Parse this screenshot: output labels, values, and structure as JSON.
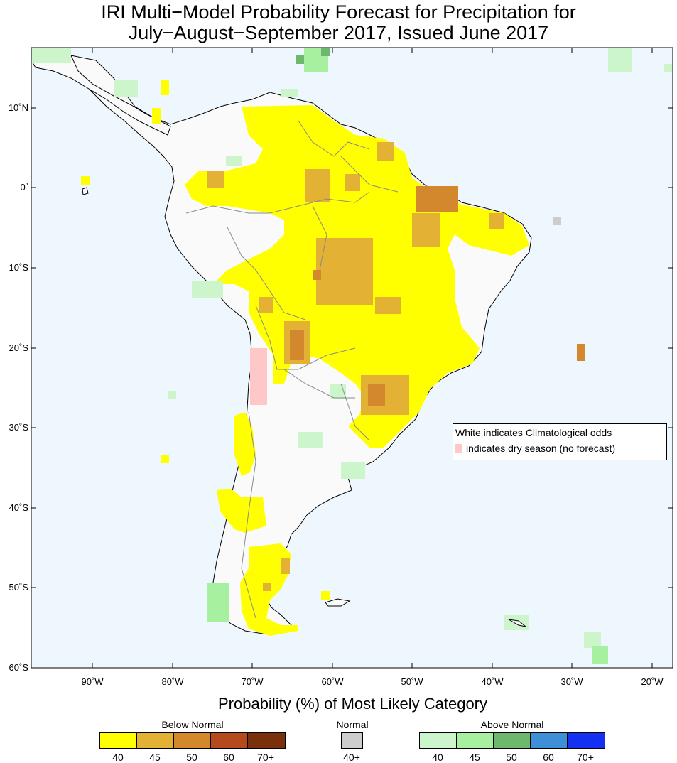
{
  "title_line1": "IRI Multi−Model Probability Forecast for Precipitation for",
  "title_line2": "July−August−September 2017, Issued June 2017",
  "lat_labels": [
    "10˚N",
    "0˚",
    "10˚S",
    "20˚S",
    "30˚S",
    "40˚S",
    "50˚S",
    "60˚S"
  ],
  "lon_labels": [
    "90˚W",
    "80˚W",
    "70˚W",
    "60˚W",
    "50˚W",
    "40˚W",
    "30˚W",
    "20˚W"
  ],
  "legend": {
    "line1": "White indicates Climatological odds",
    "line2": "indicates dry season (no forecast)",
    "dry_color": "#ffc8c8"
  },
  "colorbar": {
    "title": "Probability (%) of Most Likely Category",
    "below": {
      "label": "Below Normal",
      "ticks": [
        "40",
        "45",
        "50",
        "60",
        "70+"
      ],
      "colors": [
        "#ffff00",
        "#e3b234",
        "#d4882e",
        "#b54a1d",
        "#7a300a"
      ]
    },
    "normal": {
      "label": "Normal",
      "ticks": [
        "40+"
      ],
      "colors": [
        "#cdcdcd"
      ]
    },
    "above": {
      "label": "Above Normal",
      "ticks": [
        "40",
        "45",
        "50",
        "60",
        "70+"
      ],
      "colors": [
        "#ccf5cc",
        "#a7f09f",
        "#6cb86c",
        "#3d8fd6",
        "#1430f0"
      ]
    }
  },
  "colors": {
    "ocean": "#eef7fd",
    "land": "#fafafa",
    "coast": "#000000",
    "border": "#8a8a8a"
  }
}
